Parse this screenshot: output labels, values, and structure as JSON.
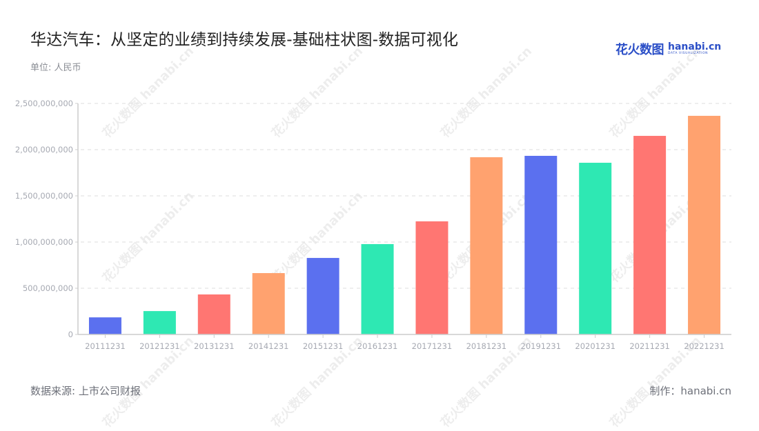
{
  "header": {
    "title": "华达汽车：从坚定的业绩到持续发展-基础柱状图-数据可视化",
    "unit": "单位: 人民币"
  },
  "logo": {
    "cn": "花火数图",
    "en": "hanabi.cn",
    "sub": "DATA VISUALIZATION"
  },
  "watermark": "花火数图 hanabi.cn",
  "footer": {
    "source": "数据来源: 上市公司财报",
    "credit": "制作：hanabi.cn"
  },
  "colors": {
    "palette": [
      "#5b70ef",
      "#2ee8b3",
      "#ff7672",
      "#ffa26f"
    ],
    "grid": "#e3e3e3",
    "axis": "#cccccc",
    "tick_label": "#a6a9b2"
  },
  "chart_data": {
    "type": "bar",
    "title": "华达汽车：从坚定的业绩到持续发展-基础柱状图-数据可视化",
    "subtitle": "单位: 人民币",
    "xlabel": "",
    "ylabel": "",
    "categories": [
      "20111231",
      "20121231",
      "20131231",
      "20141231",
      "20151231",
      "20161231",
      "20171231",
      "20181231",
      "20191231",
      "20201231",
      "20211231",
      "20221231"
    ],
    "values": [
      185000000,
      253000000,
      433000000,
      664000000,
      828000000,
      978000000,
      1224000000,
      1918000000,
      1933000000,
      1858000000,
      2149000000,
      2366000000
    ],
    "bar_colors": [
      "#5b70ef",
      "#2ee8b3",
      "#ff7672",
      "#ffa26f",
      "#5b70ef",
      "#2ee8b3",
      "#ff7672",
      "#ffa26f",
      "#5b70ef",
      "#2ee8b3",
      "#ff7672",
      "#ffa26f"
    ],
    "ylim": [
      0,
      2500000000
    ],
    "yticks": [
      0,
      500000000,
      1000000000,
      1500000000,
      2000000000,
      2500000000
    ],
    "ytick_labels": [
      "0",
      "500,000,000",
      "1,000,000,000",
      "1,500,000,000",
      "2,000,000,000",
      "2,500,000,000"
    ],
    "grid": true,
    "legend": null
  }
}
